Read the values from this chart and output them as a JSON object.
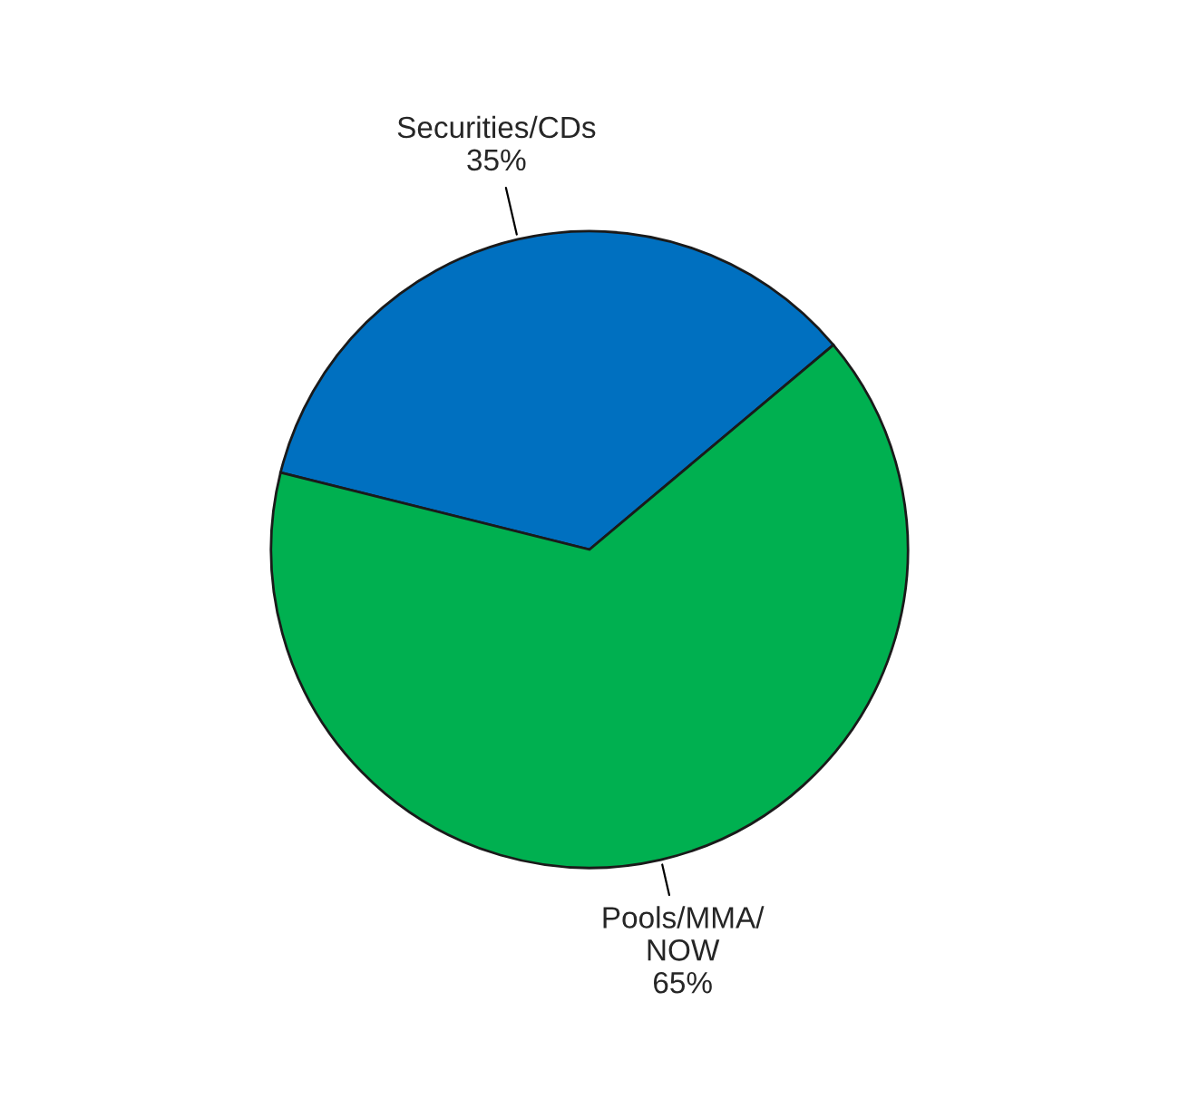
{
  "chart_data": {
    "type": "pie",
    "categories": [
      "Securities/CDs",
      "Pools/MMA/\nNOW"
    ],
    "values": [
      35,
      65
    ],
    "colors": [
      "#0070c0",
      "#00b050"
    ],
    "value_labels": [
      "35%",
      "65%"
    ]
  }
}
